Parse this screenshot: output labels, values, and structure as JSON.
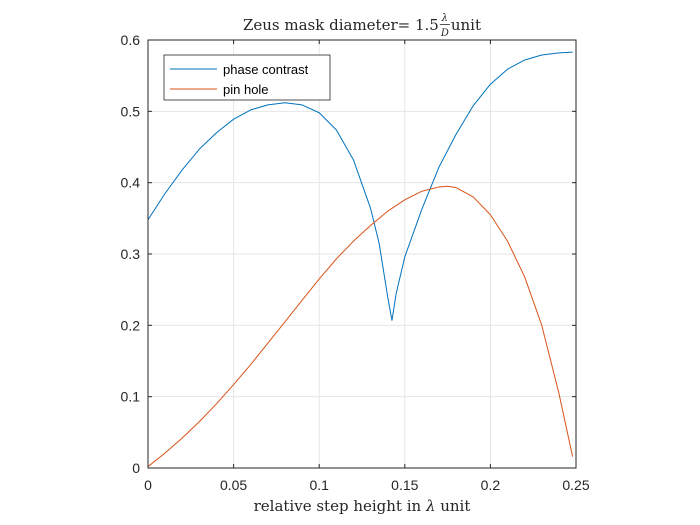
{
  "chart_data": {
    "type": "line",
    "title": {
      "prefix": "Zeus mask diameter= 1.5 ",
      "fraction_numerator": "λ",
      "fraction_denominator": "D",
      "suffix": " unit"
    },
    "xlabel": {
      "prefix": "relative step height in ",
      "symbol": "λ",
      "suffix": " unit"
    },
    "ylabel": "",
    "xlim": [
      0,
      0.25
    ],
    "ylim": [
      0,
      0.6
    ],
    "xticks": [
      "0",
      "0.05",
      "0.1",
      "0.15",
      "0.2",
      "0.25"
    ],
    "yticks": [
      "0",
      "0.1",
      "0.2",
      "0.3",
      "0.4",
      "0.5",
      "0.6"
    ],
    "grid": true,
    "legend_position": "top-left",
    "series": [
      {
        "name": "phase contrast",
        "color": "#0072BD",
        "x": [
          0,
          0.01,
          0.02,
          0.03,
          0.04,
          0.05,
          0.06,
          0.07,
          0.08,
          0.09,
          0.1,
          0.11,
          0.12,
          0.13,
          0.135,
          0.14,
          0.1425,
          0.145,
          0.15,
          0.16,
          0.17,
          0.18,
          0.19,
          0.2,
          0.21,
          0.22,
          0.23,
          0.24,
          0.248
        ],
        "y": [
          0.348,
          0.385,
          0.418,
          0.447,
          0.47,
          0.489,
          0.502,
          0.509,
          0.512,
          0.509,
          0.498,
          0.474,
          0.432,
          0.364,
          0.315,
          0.24,
          0.207,
          0.245,
          0.296,
          0.363,
          0.422,
          0.468,
          0.508,
          0.538,
          0.559,
          0.572,
          0.579,
          0.582,
          0.583
        ]
      },
      {
        "name": "pin hole",
        "color": "#D95319",
        "x": [
          0,
          0.01,
          0.02,
          0.03,
          0.04,
          0.05,
          0.06,
          0.07,
          0.08,
          0.09,
          0.1,
          0.11,
          0.12,
          0.13,
          0.14,
          0.15,
          0.16,
          0.17,
          0.175,
          0.18,
          0.19,
          0.2,
          0.21,
          0.22,
          0.23,
          0.24,
          0.248
        ],
        "y": [
          0.002,
          0.021,
          0.042,
          0.065,
          0.09,
          0.117,
          0.145,
          0.175,
          0.205,
          0.235,
          0.265,
          0.293,
          0.318,
          0.34,
          0.36,
          0.376,
          0.388,
          0.394,
          0.395,
          0.393,
          0.38,
          0.355,
          0.318,
          0.268,
          0.2,
          0.105,
          0.016
        ]
      }
    ]
  }
}
